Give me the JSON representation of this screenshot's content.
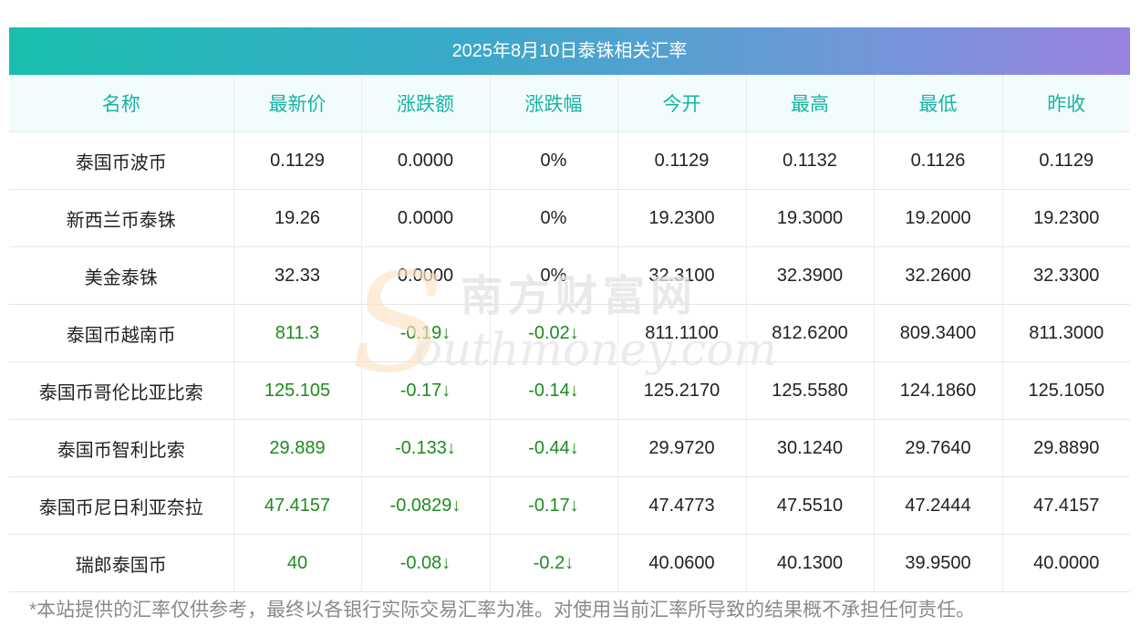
{
  "title": "2025年8月10日泰铢相关汇率",
  "columns": [
    "名称",
    "最新价",
    "涨跌额",
    "涨跌幅",
    "今开",
    "最高",
    "最低",
    "昨收"
  ],
  "rows": [
    {
      "name": "泰国币波币",
      "latest": "0.1129",
      "change": "0.0000",
      "pct": "0%",
      "open": "0.1129",
      "high": "0.1132",
      "low": "0.1126",
      "prev": "0.1129",
      "trend": "flat"
    },
    {
      "name": "新西兰币泰铢",
      "latest": "19.26",
      "change": "0.0000",
      "pct": "0%",
      "open": "19.2300",
      "high": "19.3000",
      "low": "19.2000",
      "prev": "19.2300",
      "trend": "flat"
    },
    {
      "name": "美金泰铢",
      "latest": "32.33",
      "change": "0.0000",
      "pct": "0%",
      "open": "32.3100",
      "high": "32.3900",
      "low": "32.2600",
      "prev": "32.3300",
      "trend": "flat"
    },
    {
      "name": "泰国币越南币",
      "latest": "811.3",
      "change": "-0.19↓",
      "pct": "-0.02↓",
      "open": "811.1100",
      "high": "812.6200",
      "low": "809.3400",
      "prev": "811.3000",
      "trend": "down"
    },
    {
      "name": "泰国币哥伦比亚比索",
      "latest": "125.105",
      "change": "-0.17↓",
      "pct": "-0.14↓",
      "open": "125.2170",
      "high": "125.5580",
      "low": "124.1860",
      "prev": "125.1050",
      "trend": "down"
    },
    {
      "name": "泰国币智利比索",
      "latest": "29.889",
      "change": "-0.133↓",
      "pct": "-0.44↓",
      "open": "29.9720",
      "high": "30.1240",
      "low": "29.7640",
      "prev": "29.8890",
      "trend": "down"
    },
    {
      "name": "泰国币尼日利亚奈拉",
      "latest": "47.4157",
      "change": "-0.0829↓",
      "pct": "-0.17↓",
      "open": "47.4773",
      "high": "47.5510",
      "low": "47.2444",
      "prev": "47.4157",
      "trend": "down"
    },
    {
      "name": "瑞郎泰国币",
      "latest": "40",
      "change": "-0.08↓",
      "pct": "-0.2↓",
      "open": "40.0600",
      "high": "40.1300",
      "low": "39.9500",
      "prev": "40.0000",
      "trend": "down"
    }
  ],
  "footnote": "*本站提供的汇率仅供参考，最终以各银行实际交易汇率为准。对使用当前汇率所导致的结果概不承担任何责任。",
  "watermark": {
    "cn": "南方财富网",
    "en": "outhmoney.com",
    "letter": "S"
  },
  "colors": {
    "header_text": "#17b3a4",
    "down": "#1f8a1f",
    "up": "#ff3b3b",
    "footnote": "#8a8a8a"
  }
}
